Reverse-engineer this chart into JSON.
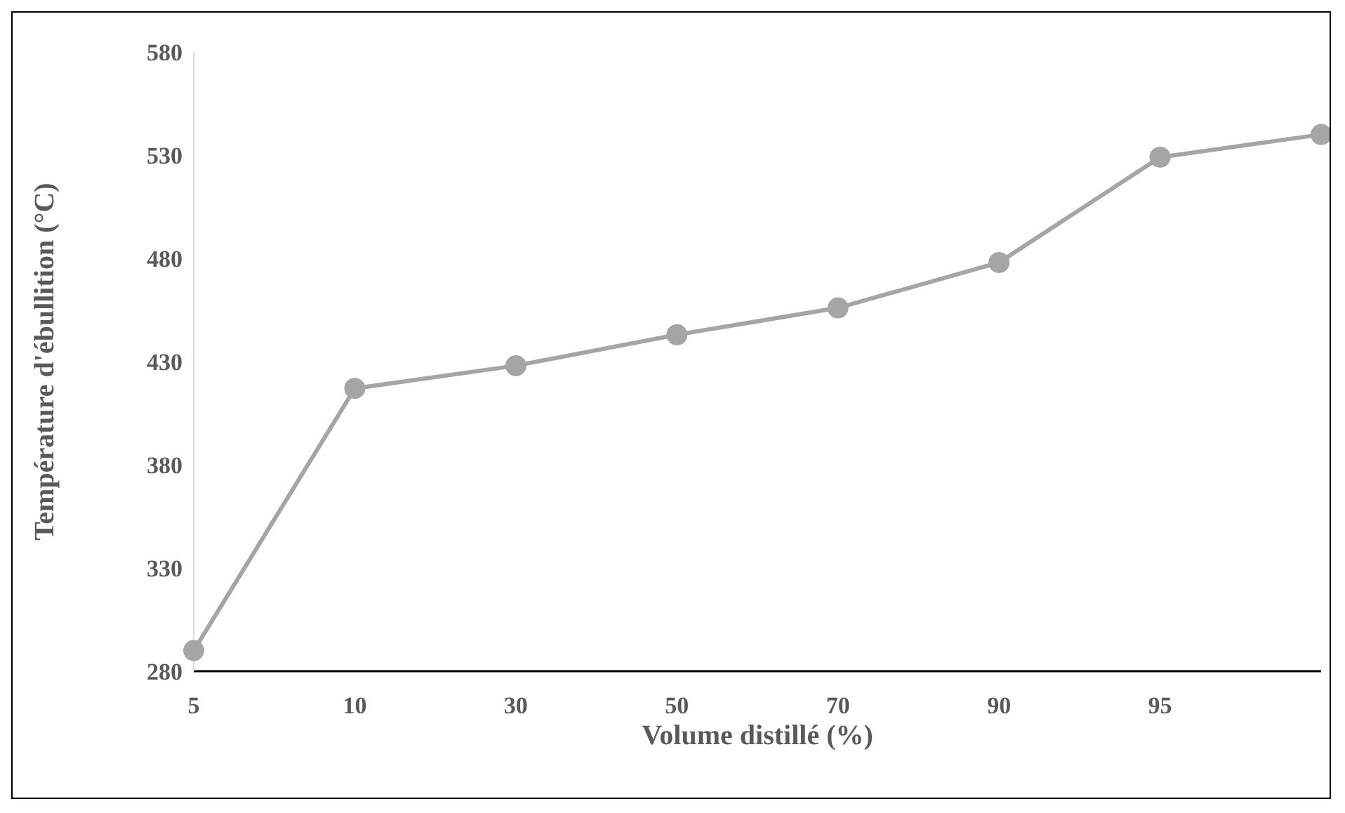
{
  "chart_data": {
    "type": "line",
    "xlabel": "Volume distillé (%)",
    "ylabel": "Température d'ébullition (°C)",
    "categories": [
      "5",
      "10",
      "30",
      "50",
      "70",
      "90",
      "95",
      null
    ],
    "series": [
      {
        "color": "#a5a5a5",
        "values": [
          290,
          417,
          428,
          443,
          456,
          478,
          529,
          540
        ]
      }
    ],
    "ylim": [
      280,
      580
    ],
    "yticks": [
      280,
      330,
      380,
      430,
      480,
      530,
      580
    ],
    "grid": false,
    "legend": false,
    "marker": "circle",
    "line_style": "solid"
  }
}
